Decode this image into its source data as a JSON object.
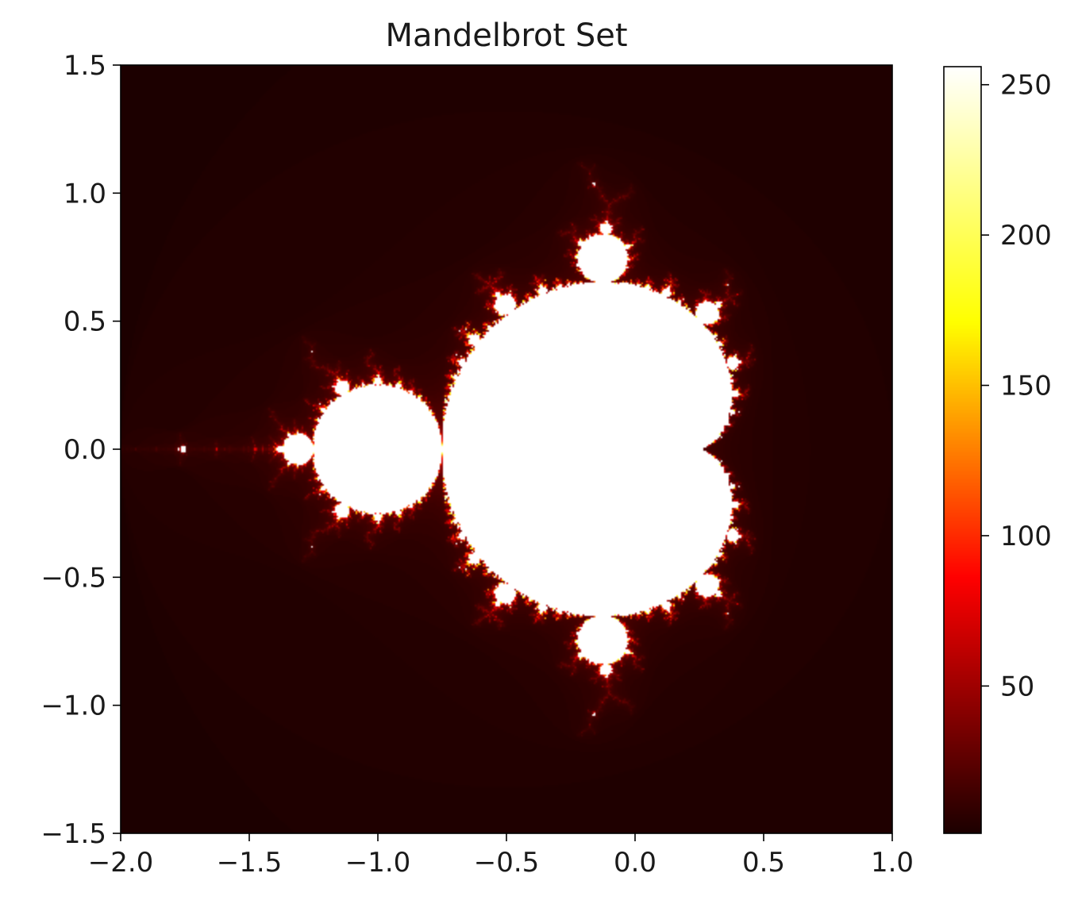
{
  "chart_data": {
    "type": "heatmap",
    "title": "Mandelbrot Set",
    "xlabel": "",
    "ylabel": "",
    "xlim": [
      -2.0,
      1.0
    ],
    "ylim": [
      -1.5,
      1.5
    ],
    "x_ticks": [
      -2.0,
      -1.5,
      -1.0,
      -0.5,
      0.0,
      0.5,
      1.0
    ],
    "x_tick_labels": [
      "−2.0",
      "−1.5",
      "−1.0",
      "−0.5",
      "0.0",
      "0.5",
      "1.0"
    ],
    "y_ticks": [
      -1.5,
      -1.0,
      -0.5,
      0.0,
      0.5,
      1.0,
      1.5
    ],
    "y_tick_labels": [
      "−1.5",
      "−1.0",
      "−0.5",
      "0.0",
      "0.5",
      "1.0",
      "1.5"
    ],
    "max_iterations": 256,
    "colormap": "hot",
    "colorbar": {
      "range": [
        1,
        256
      ],
      "ticks": [
        50,
        100,
        150,
        200,
        250
      ],
      "tick_labels": [
        "50",
        "100",
        "150",
        "200",
        "250"
      ]
    },
    "grid": false
  }
}
